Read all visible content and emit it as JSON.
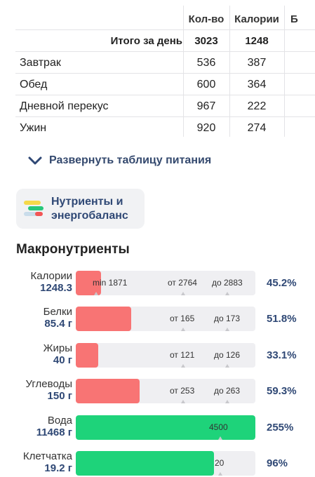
{
  "table": {
    "headers": [
      "Кол-во",
      "Калории",
      "Б"
    ],
    "total": {
      "label": "Итого за день",
      "qty": "3023",
      "cal": "1248"
    },
    "rows": [
      {
        "name": "Завтрак",
        "qty": "536",
        "cal": "387"
      },
      {
        "name": "Обед",
        "qty": "600",
        "cal": "364"
      },
      {
        "name": "Дневной перекус",
        "qty": "967",
        "cal": "222"
      },
      {
        "name": "Ужин",
        "qty": "920",
        "cal": "274"
      }
    ]
  },
  "expand": {
    "label": "Развернуть таблицу питания",
    "icon": "chevron-down-icon"
  },
  "nutrients_chip": {
    "line1": "Нутриенты и",
    "line2": "энергобаланс",
    "icon": "energy-balance-icon",
    "colors": [
      "#f5d94a",
      "#27c77a",
      "#c9dcea",
      "#f25555"
    ]
  },
  "macros": {
    "title": "Макронутриенты",
    "items": [
      {
        "name": "Калории",
        "value": "1248.3",
        "percent": "45.2%",
        "fill": 0.14,
        "color": "red",
        "marks": [
          "min 1871",
          "от 2764",
          "до 2883"
        ]
      },
      {
        "name": "Белки",
        "value": "85.4 г",
        "percent": "51.8%",
        "fill": 0.31,
        "color": "red",
        "marks": [
          "от 165",
          "до 173"
        ]
      },
      {
        "name": "Жиры",
        "value": "40 г",
        "percent": "33.1%",
        "fill": 0.125,
        "color": "red",
        "marks": [
          "от 121",
          "до 126"
        ]
      },
      {
        "name": "Углеводы",
        "value": "150 г",
        "percent": "59.3%",
        "fill": 0.355,
        "color": "red",
        "marks": [
          "от 253",
          "до 263"
        ]
      },
      {
        "name": "Вода",
        "value": "11468 г",
        "percent": "255%",
        "fill": 1.0,
        "color": "green",
        "marks": [
          "4500"
        ]
      },
      {
        "name": "Клетчатка",
        "value": "19.2 г",
        "percent": "96%",
        "fill": 0.77,
        "color": "green",
        "marks": [
          "20"
        ]
      }
    ]
  },
  "colors": {
    "accent_blue": "#2f4875",
    "bar_red": "#f87474",
    "bar_green": "#1ed37a",
    "track": "#efeff2"
  }
}
